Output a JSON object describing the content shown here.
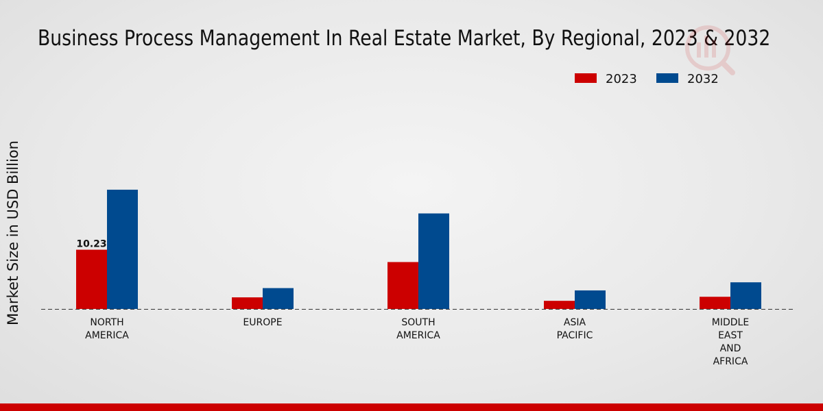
{
  "chart_data": {
    "type": "bar",
    "title": "Business Process Management In Real Estate Market, By Regional, 2023 & 2032",
    "xlabel": "",
    "ylabel": "Market Size in USD Billion",
    "categories": [
      "NORTH\nAMERICA",
      "EUROPE",
      "SOUTH\nAMERICA",
      "ASIA\nPACIFIC",
      "MIDDLE\nEAST\nAND\nAFRICA"
    ],
    "series": [
      {
        "name": "2023",
        "color": "#cc0000",
        "values": [
          10.23,
          2.0,
          8.1,
          1.4,
          2.1
        ]
      },
      {
        "name": "2032",
        "color": "#004a8f",
        "values": [
          20.6,
          3.6,
          16.5,
          3.2,
          4.6
        ]
      }
    ],
    "data_labels": [
      {
        "series": 0,
        "index": 0,
        "text": "10.23"
      }
    ],
    "ylim": [
      0,
      30
    ],
    "grid": false,
    "legend_position": "top-right"
  }
}
